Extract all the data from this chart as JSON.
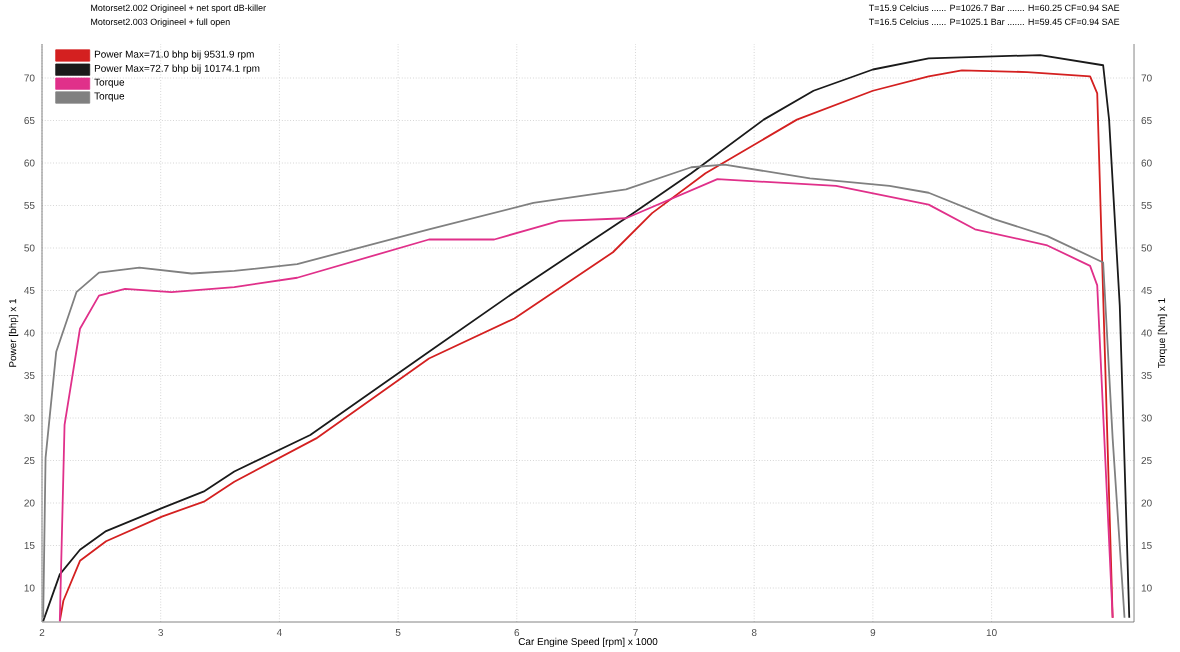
{
  "chart_data": {
    "type": "line",
    "xlabel": "Car Engine Speed [rpm] x 1000",
    "ylabel": "Power [bhp] x 1",
    "y2label": "Torque [Nm] x 1",
    "annotations": [
      "Motorset2.002 Origineel + net sport dB-killer",
      "Motorset2.003 Origineel + full open",
      "T=15.9 Celcius ...... P=1026.7 Bar ....... H=60.25 CF=0.94 SAE",
      "T=16.5 Celcius ...... P=1025.1 Bar ....... H=59.45 CF=0.94 SAE"
    ],
    "xlim": [
      2,
      11.2
    ],
    "xticks": [
      2,
      3,
      4,
      5,
      6,
      7,
      8,
      9,
      10
    ],
    "ylim": [
      6,
      74
    ],
    "yticks": [
      10,
      15,
      20,
      25,
      30,
      35,
      40,
      45,
      50,
      55,
      60,
      65,
      70
    ],
    "y2lim": [
      6,
      74
    ],
    "y2ticks": [
      10,
      15,
      20,
      25,
      30,
      35,
      40,
      45,
      50,
      55,
      60,
      65,
      70
    ],
    "grid": true,
    "legend": "top left",
    "marker": "none",
    "line_style": "solid",
    "series": [
      {
        "name": "Power Max=71.0 bhp bij 9531.9 rpm",
        "color": "#d42020",
        "axis": "y",
        "x": [
          2.15,
          2.18,
          2.32,
          2.54,
          3.01,
          3.37,
          3.62,
          4.31,
          5.26,
          5.98,
          6.81,
          7.14,
          7.59,
          8.36,
          9.0,
          9.47,
          9.75,
          10.3,
          10.83,
          10.89,
          11.02
        ],
        "values": [
          6.1,
          8.5,
          13.2,
          15.5,
          18.4,
          20.2,
          22.5,
          27.6,
          37.0,
          41.7,
          49.5,
          54.1,
          58.8,
          65.1,
          68.5,
          70.2,
          70.9,
          70.7,
          70.2,
          68.2,
          6.5
        ]
      },
      {
        "name": "Power Max=72.7 bhp bij 10174.1 rpm",
        "color": "#1a1a1a",
        "axis": "y",
        "x": [
          2.01,
          2.15,
          2.32,
          2.54,
          3.01,
          3.37,
          3.62,
          4.26,
          5.26,
          5.98,
          6.98,
          7.47,
          8.08,
          8.5,
          9.0,
          9.47,
          10.41,
          10.94,
          10.99,
          11.08,
          11.16
        ],
        "values": [
          6.1,
          11.6,
          14.5,
          16.7,
          19.4,
          21.4,
          23.7,
          28.0,
          37.8,
          44.8,
          54.1,
          58.8,
          65.1,
          68.5,
          71.0,
          72.3,
          72.7,
          71.5,
          65.1,
          43.2,
          6.5
        ]
      },
      {
        "name": "Torque",
        "color": "#e0308a",
        "axis": "y2",
        "x": [
          2.15,
          2.19,
          2.32,
          2.48,
          2.7,
          3.09,
          3.62,
          4.15,
          5.26,
          5.81,
          6.36,
          6.92,
          7.69,
          8.69,
          9.47,
          9.86,
          10.47,
          10.83,
          10.89,
          11.02
        ],
        "values": [
          6.1,
          29.2,
          40.5,
          44.4,
          45.2,
          44.8,
          45.4,
          46.5,
          51.0,
          51.0,
          53.2,
          53.5,
          58.1,
          57.3,
          55.1,
          52.2,
          50.3,
          47.9,
          45.6,
          6.5
        ]
      },
      {
        "name": "Torque",
        "color": "#808080",
        "axis": "y2",
        "x": [
          2.01,
          2.03,
          2.12,
          2.29,
          2.48,
          2.82,
          3.26,
          3.62,
          4.15,
          5.26,
          6.14,
          6.92,
          7.47,
          7.75,
          8.47,
          9.14,
          9.47,
          10.02,
          10.47,
          10.94,
          11.02,
          11.12
        ],
        "values": [
          6.5,
          25.3,
          37.8,
          44.8,
          47.1,
          47.7,
          47.0,
          47.3,
          48.1,
          52.2,
          55.3,
          56.9,
          59.5,
          59.8,
          58.2,
          57.3,
          56.5,
          53.4,
          51.4,
          48.3,
          27.6,
          6.5
        ]
      }
    ]
  }
}
